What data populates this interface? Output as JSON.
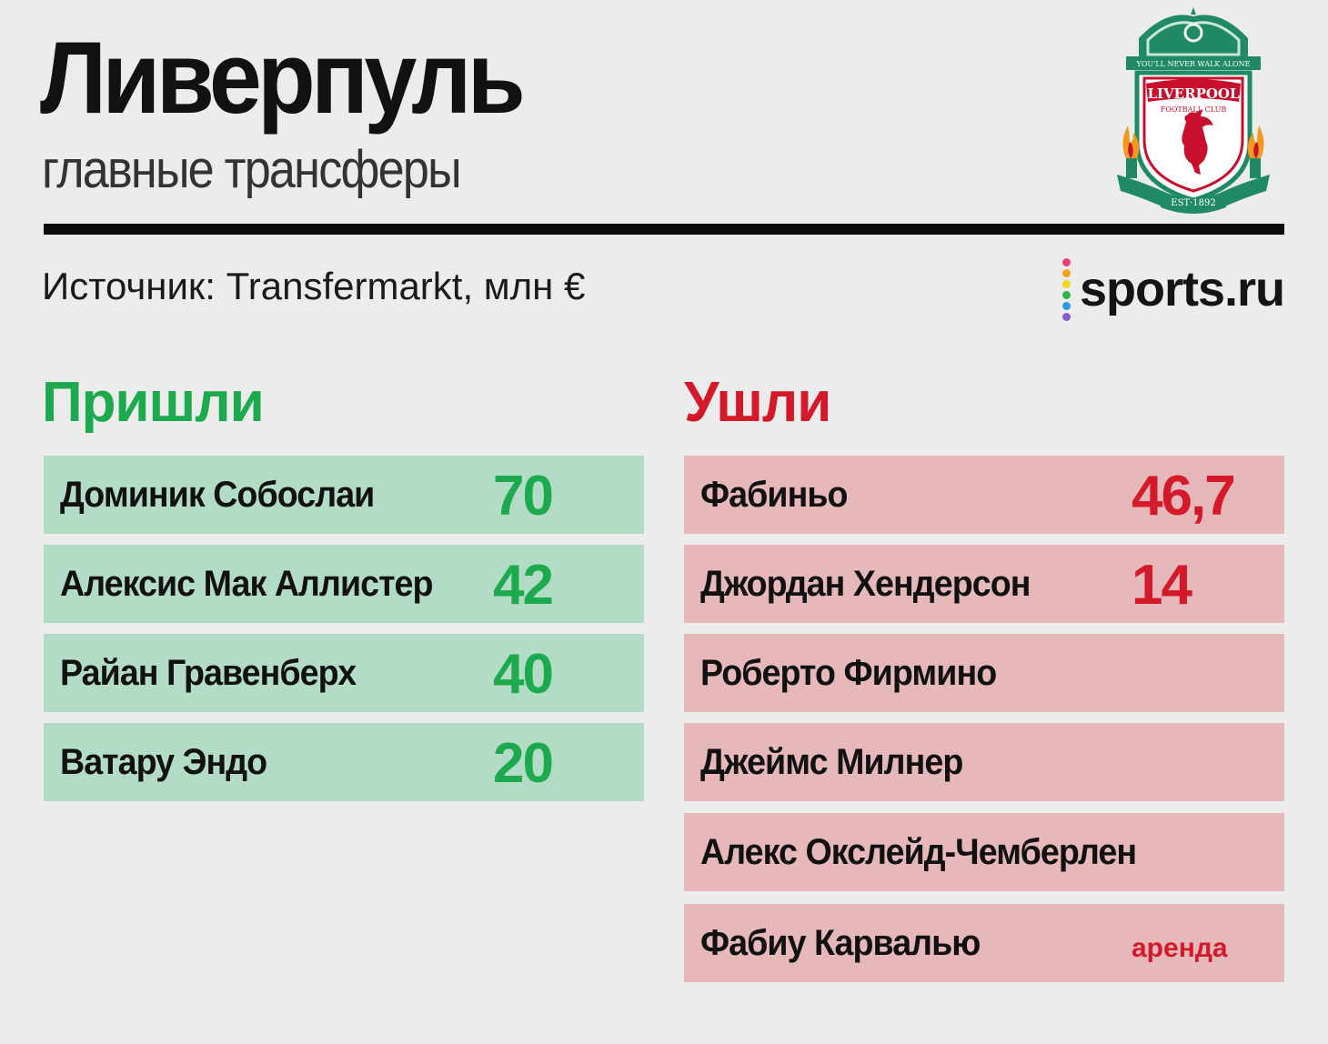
{
  "header": {
    "title": "Ливерпуль",
    "subtitle": "главные трансферы",
    "crest_icon": "liverpool-fc-crest",
    "crest_text": {
      "motto": "YOU'LL NEVER WALK ALONE",
      "club": "LIVERPOOL",
      "club_sub": "FOOTBALL CLUB",
      "est": "EST·1892"
    }
  },
  "source": "Источник: Transfermarkt, млн €",
  "brand": {
    "name": "sports.ru",
    "dot_colors": [
      "#e8407a",
      "#f2a31b",
      "#f3d51c",
      "#34b24d",
      "#2f9be3",
      "#8c5ac8"
    ]
  },
  "colors": {
    "arrived": "#1daa4f",
    "arrived_row": "#b2dcc5",
    "departed": "#d3192a",
    "departed_row": "#e6b8ba"
  },
  "arrived": {
    "heading": "Пришли",
    "rows": [
      {
        "name": "Доминик Собослаи",
        "value": "70"
      },
      {
        "name": "Алексис Мак Аллистер",
        "value": "42"
      },
      {
        "name": "Райан Гравенберх",
        "value": "40"
      },
      {
        "name": "Ватару Эндо",
        "value": "20"
      }
    ]
  },
  "departed": {
    "heading": "Ушли",
    "rows": [
      {
        "name": "Фабиньо",
        "value": "46,7"
      },
      {
        "name": "Джордан Хендерсон",
        "value": "14"
      },
      {
        "name": "Роберто Фирмино",
        "value": ""
      },
      {
        "name": "Джеймс Милнер",
        "value": ""
      },
      {
        "name": "Алекс Окслейд-Чемберлен",
        "value": ""
      },
      {
        "name": "Фабиу Карвалью",
        "value": "аренда"
      }
    ]
  }
}
